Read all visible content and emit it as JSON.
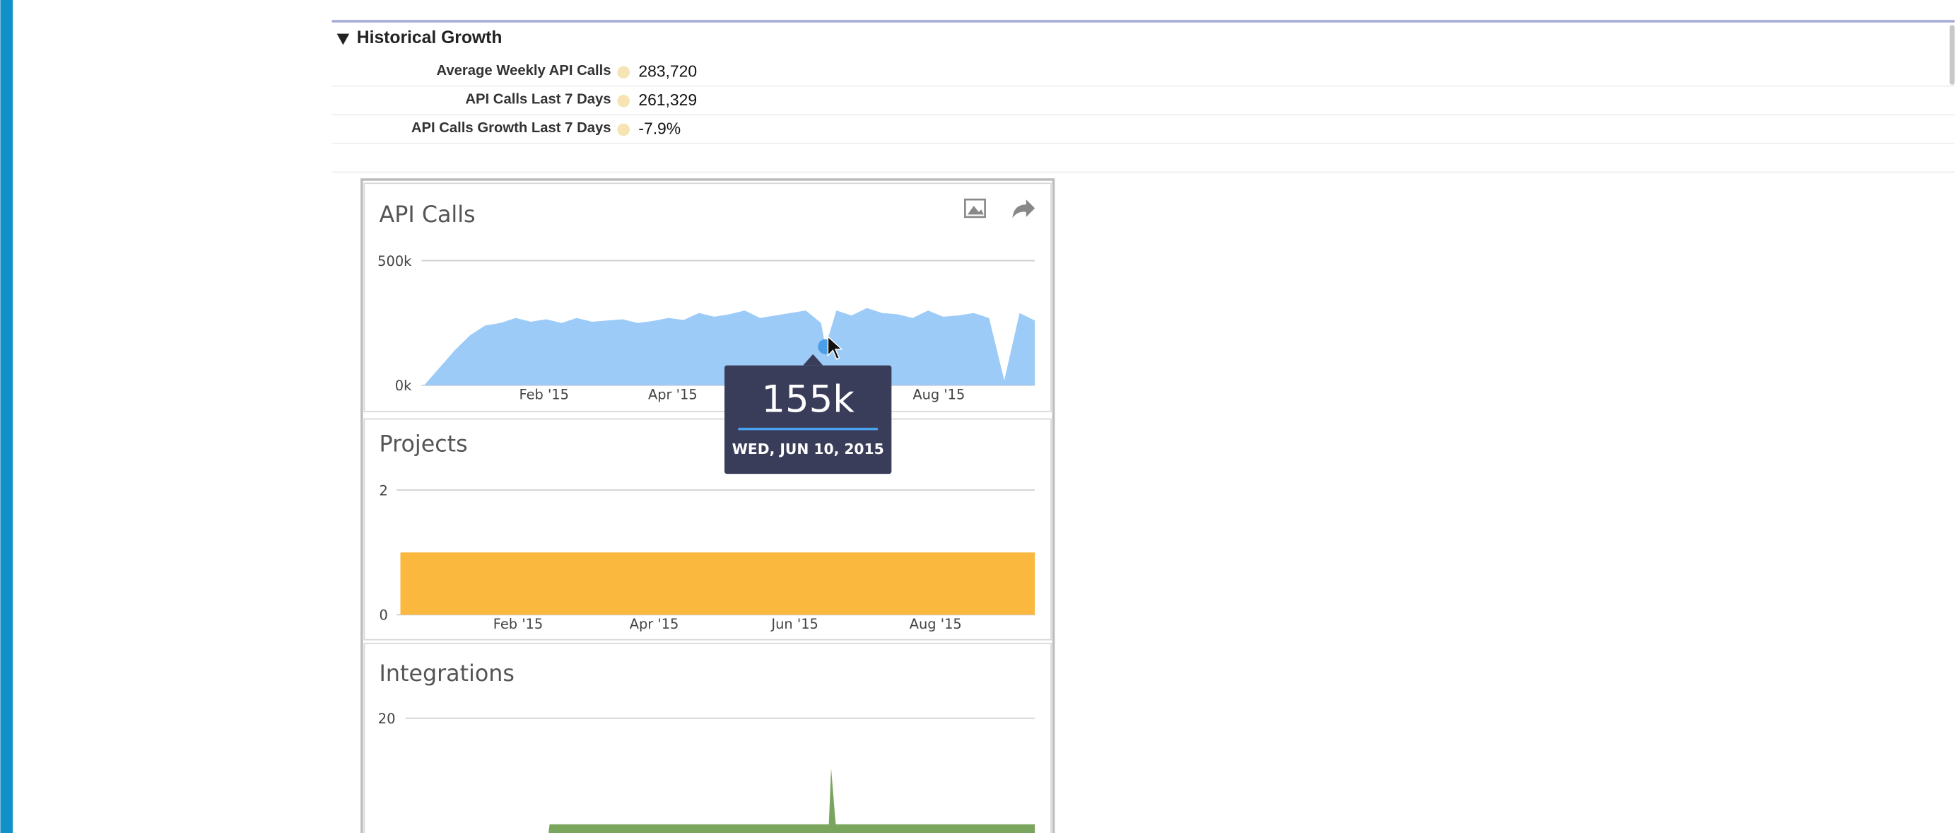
{
  "section": {
    "title": "Historical Growth",
    "rows": [
      {
        "label": "Average Weekly API Calls",
        "value": "283,720"
      },
      {
        "label": "API Calls Last 7 Days",
        "value": "261,329"
      },
      {
        "label": "API Calls Growth Last 7 Days",
        "value": "-7.9%"
      }
    ]
  },
  "charts": [
    {
      "type": "area",
      "title": "API Calls",
      "color": "#9dcbf7",
      "x": [
        "2014-12-08",
        "2014-12-15",
        "2014-12-22",
        "2014-12-29",
        "2015-01-05",
        "2015-01-12",
        "2015-01-19",
        "2015-01-26",
        "2015-02-02",
        "2015-02-09",
        "2015-02-16",
        "2015-02-23",
        "2015-03-02",
        "2015-03-09",
        "2015-03-16",
        "2015-03-23",
        "2015-03-30",
        "2015-04-06",
        "2015-04-13",
        "2015-04-20",
        "2015-04-27",
        "2015-05-04",
        "2015-05-11",
        "2015-05-18",
        "2015-05-25",
        "2015-06-01",
        "2015-06-08",
        "2015-06-10",
        "2015-06-15",
        "2015-06-22",
        "2015-06-29",
        "2015-07-06",
        "2015-07-13",
        "2015-07-20",
        "2015-07-27",
        "2015-08-03",
        "2015-08-10",
        "2015-08-17",
        "2015-08-24",
        "2015-08-31",
        "2015-09-07",
        "2015-09-14"
      ],
      "values": [
        0,
        70000,
        140000,
        200000,
        240000,
        250000,
        270000,
        255000,
        265000,
        250000,
        270000,
        255000,
        260000,
        265000,
        250000,
        258000,
        270000,
        262000,
        290000,
        275000,
        285000,
        300000,
        270000,
        280000,
        290000,
        300000,
        250000,
        155000,
        300000,
        280000,
        310000,
        290000,
        285000,
        270000,
        300000,
        275000,
        280000,
        290000,
        270000,
        20000,
        290000,
        260000
      ],
      "xlim": [
        "2014-12-08",
        "2015-09-14"
      ],
      "xticks": [
        {
          "value": "2015-02-01",
          "label": "Feb '15"
        },
        {
          "value": "2015-04-01",
          "label": "Apr '15"
        },
        {
          "value": "2015-08-01",
          "label": "Aug '15"
        }
      ],
      "ylim": [
        0,
        500000
      ],
      "yticks": [
        {
          "value": 0,
          "label": "0k"
        },
        {
          "value": 500000,
          "label": "500k"
        }
      ],
      "grid": true
    },
    {
      "type": "area",
      "title": "Projects",
      "color": "#fbb83e",
      "x": [
        "2014-12-12",
        "2015-09-13"
      ],
      "values": [
        1,
        1
      ],
      "xlim": [
        "2014-12-12",
        "2015-09-13"
      ],
      "xticks": [
        {
          "value": "2015-02-01",
          "label": "Feb '15"
        },
        {
          "value": "2015-04-01",
          "label": "Apr '15"
        },
        {
          "value": "2015-06-01",
          "label": "Jun '15"
        },
        {
          "value": "2015-08-01",
          "label": "Aug '15"
        }
      ],
      "ylim": [
        0,
        2
      ],
      "yticks": [
        0,
        2
      ],
      "grid": true
    },
    {
      "type": "area",
      "title": "Integrations",
      "color": "#7aa55d",
      "x": [
        "2015-02-12",
        "2015-02-13",
        "2015-06-15",
        "2015-06-16",
        "2015-06-18",
        "2015-09-13"
      ],
      "values": [
        0,
        3,
        3,
        12,
        3,
        3
      ],
      "xlim": [
        "2014-12-12",
        "2015-09-13"
      ],
      "ylim": [
        0,
        20
      ],
      "yticks": [
        20
      ],
      "grid": true
    }
  ],
  "tooltip": {
    "value": "155k",
    "date": "WED, JUN 10, 2015"
  }
}
